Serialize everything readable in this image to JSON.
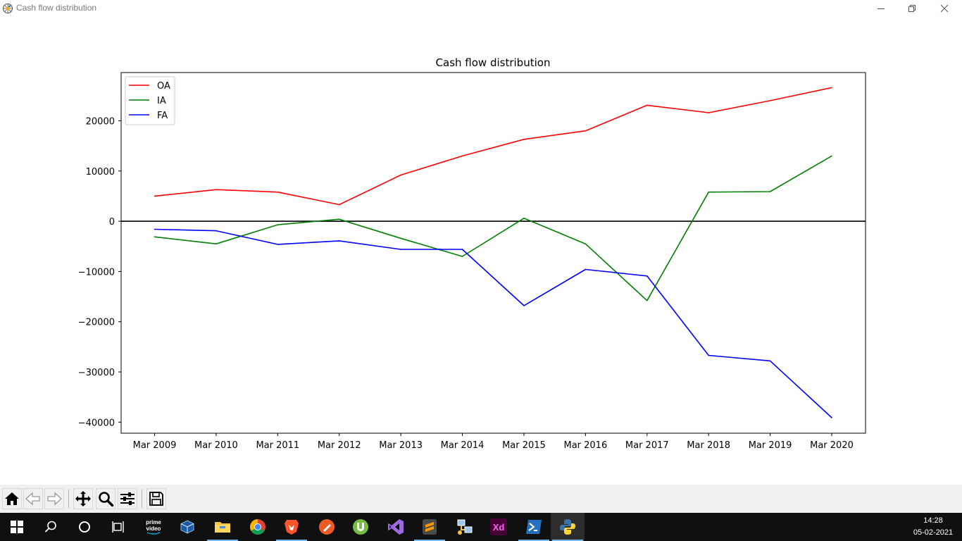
{
  "window": {
    "title": "Cash flow distribution",
    "icon": "python-figure-icon",
    "controls": [
      "minimize-icon",
      "restore-icon",
      "close-icon"
    ]
  },
  "chart_data": {
    "type": "line",
    "title": "Cash flow distribution",
    "xlabel": "",
    "ylabel": "",
    "categories": [
      "Mar 2009",
      "Mar 2010",
      "Mar 2011",
      "Mar 2012",
      "Mar 2013",
      "Mar 2014",
      "Mar 2015",
      "Mar 2016",
      "Mar 2017",
      "Mar 2018",
      "Mar 2019",
      "Mar 2020"
    ],
    "series": [
      {
        "name": "OA",
        "color": "#ff0000",
        "values": [
          5000,
          6300,
          5800,
          3300,
          9200,
          13000,
          16300,
          18000,
          23100,
          21600,
          24000,
          26600
        ]
      },
      {
        "name": "IA",
        "color": "#008000",
        "values": [
          -3100,
          -4500,
          -700,
          400,
          -3400,
          -7000,
          600,
          -4500,
          -15800,
          5800,
          5900,
          13000
        ]
      },
      {
        "name": "FA",
        "color": "#0000ff",
        "values": [
          -1600,
          -1900,
          -4600,
          -3900,
          -5600,
          -5600,
          -16800,
          -9600,
          -10900,
          -26700,
          -27800,
          -39100
        ]
      }
    ],
    "ylim": [
      -42200,
      29600
    ],
    "yticks": [
      {
        "value": 20000,
        "label": "20000"
      },
      {
        "value": 10000,
        "label": "10000"
      },
      {
        "value": 0,
        "label": "0"
      },
      {
        "value": -10000,
        "label": "−10000"
      },
      {
        "value": -20000,
        "label": "−20000"
      },
      {
        "value": -30000,
        "label": "−30000"
      },
      {
        "value": -40000,
        "label": "−40000"
      }
    ],
    "reference_line": {
      "value": 0,
      "color": "#000000"
    },
    "legend": {
      "position": "top-left"
    },
    "grid": false
  },
  "toolbar": {
    "buttons": [
      {
        "name": "home-icon"
      },
      {
        "name": "back-icon"
      },
      {
        "name": "forward-icon"
      },
      {
        "name": "pan-icon"
      },
      {
        "name": "zoom-icon"
      },
      {
        "name": "configure-subplots-icon"
      },
      {
        "name": "save-icon"
      }
    ]
  },
  "taskbar": {
    "items": [
      {
        "name": "start-icon"
      },
      {
        "name": "search-icon"
      },
      {
        "name": "cortana-icon"
      },
      {
        "name": "task-view-icon"
      },
      {
        "name": "prime-video-icon",
        "label_top": "prime",
        "label_bottom": "video"
      },
      {
        "name": "virtualbox-icon"
      },
      {
        "name": "file-explorer-icon"
      },
      {
        "name": "chrome-icon"
      },
      {
        "name": "brave-icon"
      },
      {
        "name": "postman-icon"
      },
      {
        "name": "utorrent-icon"
      },
      {
        "name": "visual-studio-icon"
      },
      {
        "name": "sublime-text-icon"
      },
      {
        "name": "network-icon"
      },
      {
        "name": "adobe-xd-icon",
        "label": "Xd"
      },
      {
        "name": "powershell-icon"
      },
      {
        "name": "python-icon"
      }
    ],
    "clock": {
      "time": "14:28",
      "date": "05-02-2021"
    }
  }
}
